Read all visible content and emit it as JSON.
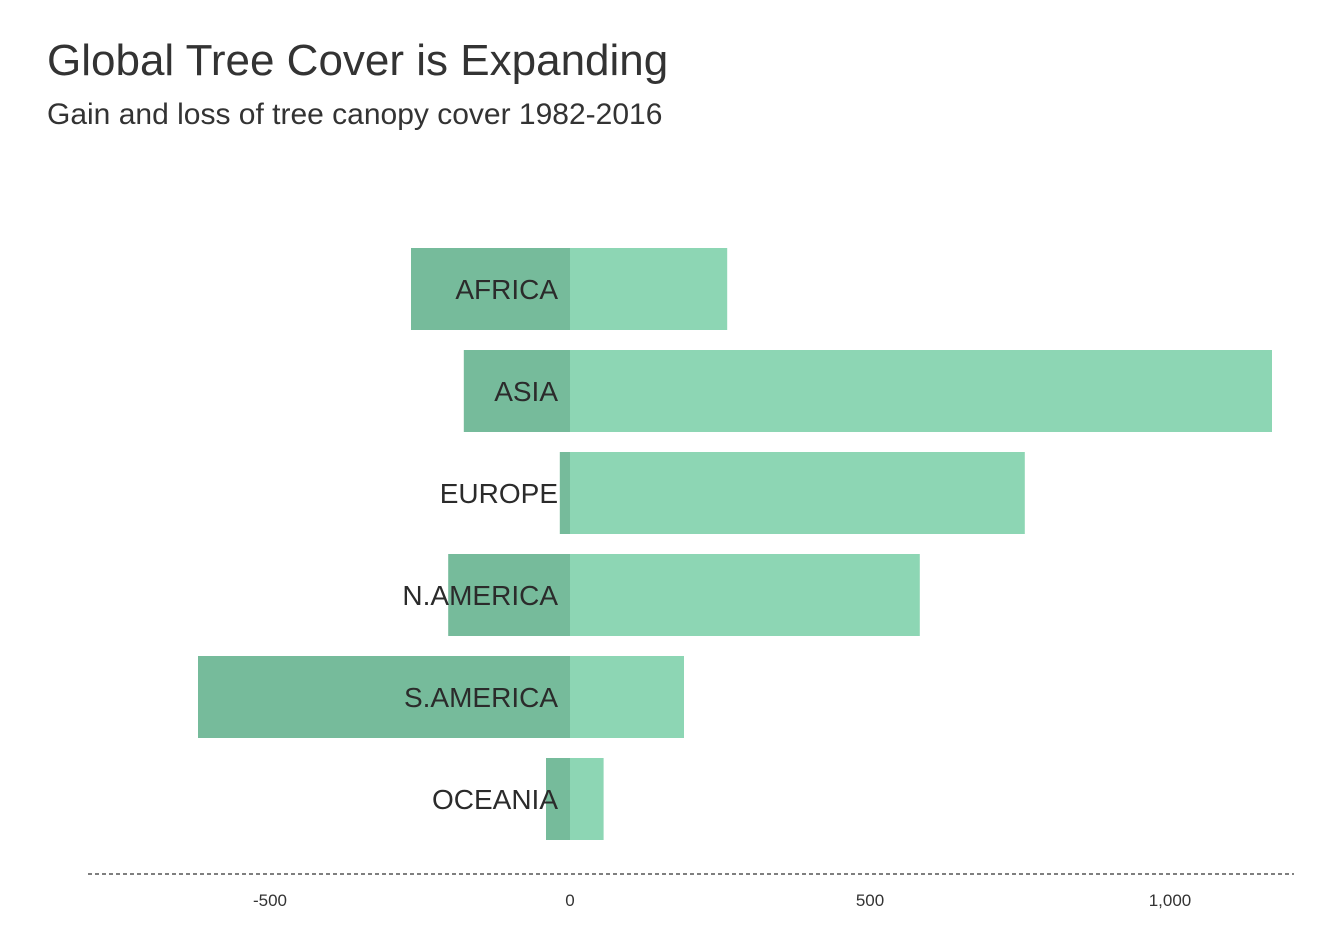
{
  "chart_data": {
    "type": "bar",
    "orientation": "horizontal",
    "stacked": "diverging",
    "title": "Global Tree Cover is Expanding",
    "subtitle": "Gain and loss of tree canopy cover 1982-2016",
    "xlabel": "",
    "ylabel": "",
    "categories": [
      "AFRICA",
      "ASIA",
      "EUROPE",
      "N.AMERICA",
      "S.AMERICA",
      "OCEANIA"
    ],
    "series": [
      {
        "values": [
          -265,
          -177,
          -17,
          -203,
          -620,
          -40
        ],
        "color": "#76bb9b"
      },
      {
        "values": [
          262,
          1170,
          758,
          583,
          190,
          56
        ],
        "color": "#8dd6b4"
      }
    ],
    "xlim": [
      -800,
      1200
    ],
    "xticks": [
      -500,
      0,
      500,
      1000
    ],
    "xtick_labels": [
      "-500",
      "0",
      "500",
      "1,000"
    ],
    "grid": false,
    "legend": "none",
    "baseline_style": "dashed"
  }
}
